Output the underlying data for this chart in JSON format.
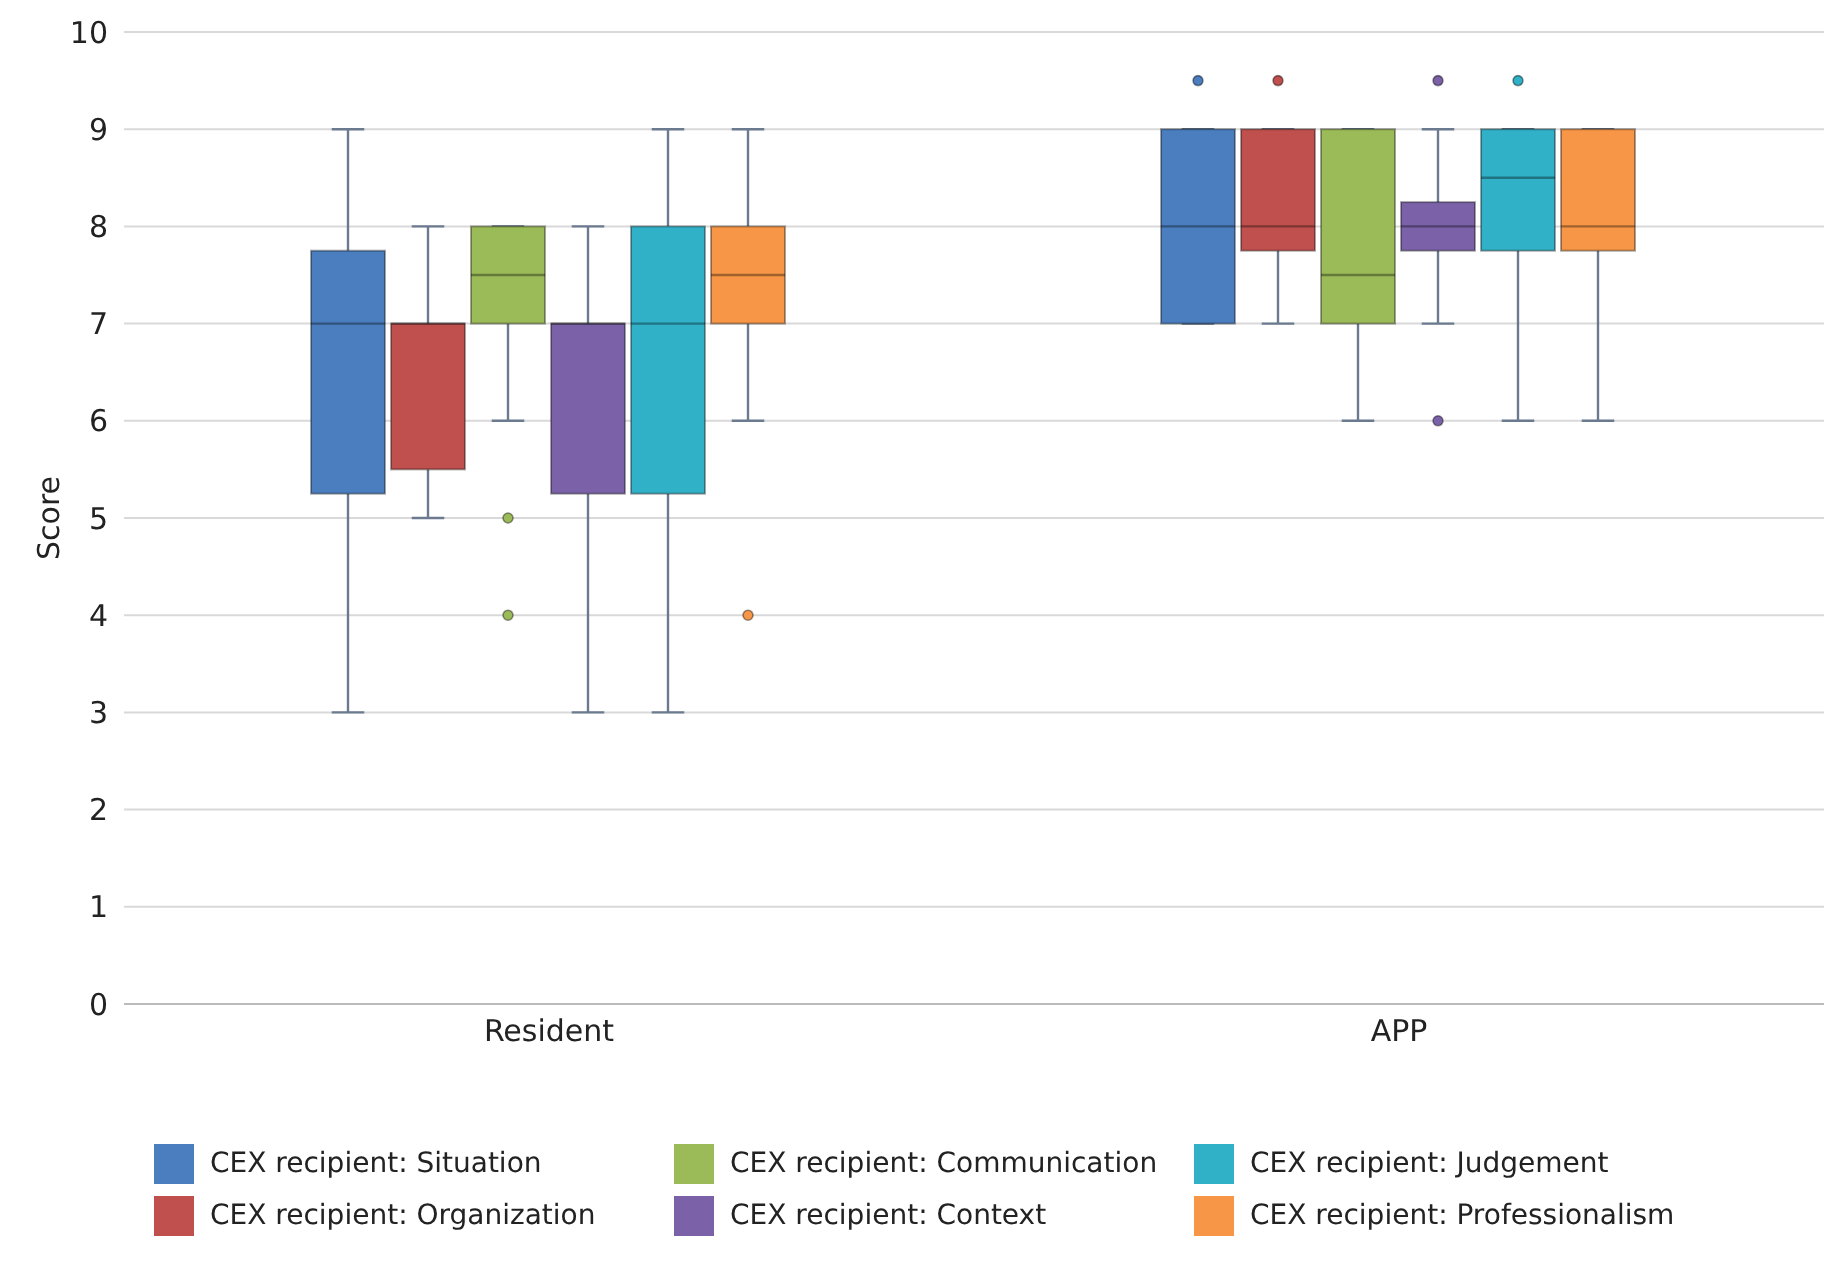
{
  "chart_data": {
    "type": "box",
    "ylabel": "Score",
    "categories": [
      "Resident",
      "APP"
    ],
    "ylim": [
      0,
      10
    ],
    "yticks": [
      0,
      1,
      2,
      3,
      4,
      5,
      6,
      7,
      8,
      9,
      10
    ],
    "grid": "y",
    "legend": "bottom",
    "series": [
      {
        "name": "CEX recipient: Situation",
        "color": "#4a7ebf",
        "boxes": [
          {
            "low": 3,
            "q1": 5.25,
            "median": 7,
            "q3": 7.75,
            "high": 9
          },
          {
            "low": 7,
            "q1": 7,
            "median": 8,
            "q3": 9,
            "high": 9,
            "outliers": [
              9.5
            ]
          }
        ]
      },
      {
        "name": "CEX recipient: Organization",
        "color": "#c0504d",
        "boxes": [
          {
            "low": 5,
            "q1": 5.5,
            "median": 7,
            "q3": 7,
            "high": 8
          },
          {
            "low": 7,
            "q1": 7.75,
            "median": 8,
            "q3": 9,
            "high": 9,
            "outliers": [
              9.5
            ]
          }
        ]
      },
      {
        "name": "CEX recipient: Communication",
        "color": "#9bbb59",
        "boxes": [
          {
            "low": 6,
            "q1": 7,
            "median": 7.5,
            "q3": 8,
            "high": 8,
            "outliers": [
              5,
              4
            ]
          },
          {
            "low": 6,
            "q1": 7,
            "median": 7.5,
            "q3": 9,
            "high": 9
          }
        ]
      },
      {
        "name": "CEX recipient: Context",
        "color": "#7b62a8",
        "boxes": [
          {
            "low": 3,
            "q1": 5.25,
            "median": 7,
            "q3": 7,
            "high": 8
          },
          {
            "low": 7,
            "q1": 7.75,
            "median": 8,
            "q3": 8.25,
            "high": 9,
            "outliers": [
              6,
              9.5
            ]
          }
        ]
      },
      {
        "name": "CEX recipient: Judgement",
        "color": "#31b1c8",
        "boxes": [
          {
            "low": 3,
            "q1": 5.25,
            "median": 7,
            "q3": 8,
            "high": 9
          },
          {
            "low": 6,
            "q1": 7.75,
            "median": 8.5,
            "q3": 9,
            "high": 9,
            "outliers": [
              9.5
            ]
          }
        ]
      },
      {
        "name": "CEX recipient: Professionalism",
        "color": "#f79646",
        "boxes": [
          {
            "low": 6,
            "q1": 7,
            "median": 7.5,
            "q3": 8,
            "high": 9,
            "outliers": [
              4
            ]
          },
          {
            "low": 6,
            "q1": 7.75,
            "median": 8,
            "q3": 9,
            "high": 9
          }
        ]
      }
    ]
  }
}
